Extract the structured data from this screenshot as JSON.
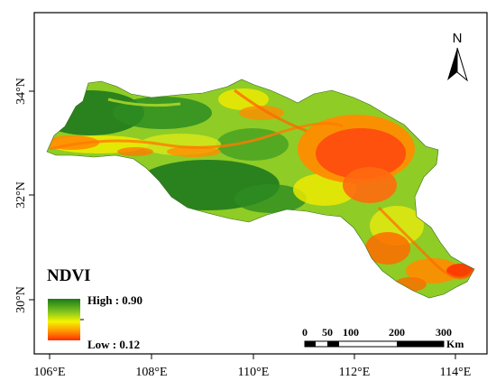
{
  "map": {
    "x_ticks": [
      "106°E",
      "108°E",
      "110°E",
      "112°E",
      "114°E"
    ],
    "y_ticks": [
      "34°N",
      "32°N",
      "30°N"
    ],
    "legend": {
      "title": "NDVI",
      "high_label": "High : 0.90",
      "low_label": "Low : 0.12",
      "high_value": 0.9,
      "low_value": 0.12,
      "colors": [
        "#1a7a1a",
        "#7cc21e",
        "#f5f500",
        "#ff8c00",
        "#ff2a00"
      ]
    },
    "north_arrow": {
      "label": "N",
      "icon": "north-arrow-icon"
    },
    "scale_bar": {
      "labels": [
        "0",
        "50",
        "100",
        "200",
        "300"
      ],
      "unit": "Km"
    },
    "colors": {
      "dark_green": "#1e7a1e",
      "green": "#4aa828",
      "yellow_green": "#b7dd2a",
      "yellow": "#f2ec00",
      "orange": "#ff8c00",
      "red": "#ff3300"
    }
  }
}
